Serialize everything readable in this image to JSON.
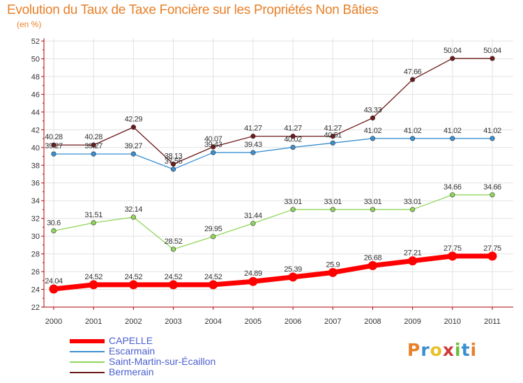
{
  "header": {
    "title": "Evolution du Taux de Taxe Foncière sur les Propriétés Non Bâties",
    "unit": "(en %)"
  },
  "logo": {
    "text": "Proxiti",
    "colors": [
      "#e8802a",
      "#3a8fd0",
      "#e8c02a",
      "#d03a3a",
      "#6abf3a",
      "#3a8fd0",
      "#e8802a"
    ]
  },
  "chart_data": {
    "type": "line",
    "title": "Evolution du Taux de Taxe Foncière sur les Propriétés Non Bâties",
    "ylabel": "(en %)",
    "xlabel": "",
    "x": [
      "2000",
      "2001",
      "2002",
      "2003",
      "2004",
      "2005",
      "2006",
      "2007",
      "2008",
      "2009",
      "2010",
      "2011"
    ],
    "ylim": [
      22,
      52
    ],
    "yticks": [
      22,
      24,
      26,
      28,
      30,
      32,
      34,
      36,
      38,
      40,
      42,
      44,
      46,
      48,
      50,
      52
    ],
    "grid": true,
    "legend_position": "bottom-left",
    "series": [
      {
        "name": "CAPELLE",
        "color": "#ff0000",
        "emphasis": true,
        "values": [
          24.04,
          24.52,
          24.52,
          24.52,
          24.52,
          24.89,
          25.39,
          25.9,
          26.68,
          27.21,
          27.75,
          27.75
        ],
        "labels": [
          "24.04",
          "24.52",
          "24.52",
          "24.52",
          "24.52",
          "24.89",
          "25.39",
          "25.9",
          "26.68",
          "27.21",
          "27.75",
          "27.75"
        ]
      },
      {
        "name": "Escarmain",
        "color": "#3a8fd0",
        "emphasis": false,
        "values": [
          39.27,
          39.27,
          39.27,
          37.55,
          39.43,
          39.43,
          40.02,
          40.51,
          41.02,
          41.02,
          41.02,
          41.02
        ],
        "labels": [
          "39.27",
          "39.27",
          "39.27",
          "37.55",
          "39.43",
          "39.43",
          "40.02",
          "40.51",
          "41.02",
          "41.02",
          "41.02",
          "41.02"
        ]
      },
      {
        "name": "Saint-Martin-sur-Écaillon",
        "color": "#8fd65a",
        "emphasis": false,
        "values": [
          30.6,
          31.51,
          32.14,
          28.52,
          29.95,
          31.44,
          33.01,
          33.01,
          33.01,
          33.01,
          34.66,
          34.66
        ],
        "labels": [
          "30.6",
          "31.51",
          "32.14",
          "28.52",
          "29.95",
          "31.44",
          "33.01",
          "33.01",
          "33.01",
          "33.01",
          "34.66",
          "34.66"
        ]
      },
      {
        "name": "Bermerain",
        "color": "#6e1a1a",
        "emphasis": false,
        "values": [
          40.28,
          40.28,
          42.29,
          38.13,
          40.07,
          41.27,
          41.27,
          41.27,
          43.33,
          47.66,
          50.04,
          50.04
        ],
        "labels": [
          "40.28",
          "40.28",
          "42.29",
          "38.13",
          "40.07",
          "41.27",
          "41.27",
          "41.27",
          "43.33",
          "47.66",
          "50.04",
          "50.04"
        ]
      }
    ]
  }
}
